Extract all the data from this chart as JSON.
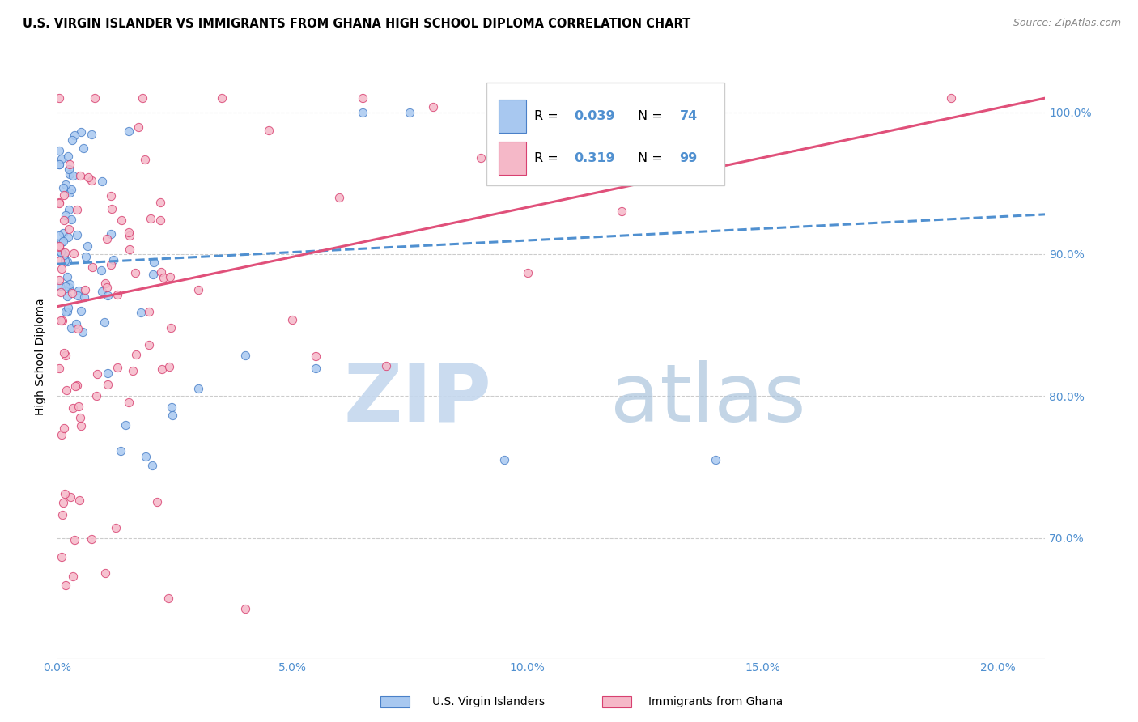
{
  "title": "U.S. VIRGIN ISLANDER VS IMMIGRANTS FROM GHANA HIGH SCHOOL DIPLOMA CORRELATION CHART",
  "source": "Source: ZipAtlas.com",
  "ylabel": "High School Diploma",
  "blue_color": "#a8c8f0",
  "pink_color": "#f5b8c8",
  "trend_blue_color": "#5090d0",
  "trend_pink_color": "#e0507a",
  "blue_edge": "#4a80c8",
  "pink_edge": "#d84070",
  "xlim": [
    0.0,
    0.21
  ],
  "ylim": [
    0.615,
    1.04
  ],
  "xticks": [
    0.0,
    0.05,
    0.1,
    0.15,
    0.2
  ],
  "xticklabels": [
    "0.0%",
    "5.0%",
    "10.0%",
    "15.0%",
    "20.0%"
  ],
  "yticks": [
    0.7,
    0.8,
    0.9,
    1.0
  ],
  "yticklabels": [
    "70.0%",
    "80.0%",
    "90.0%",
    "100.0%"
  ],
  "tick_color": "#5090d0",
  "grid_color": "#cccccc",
  "blue_trend_x": [
    0.0,
    0.21
  ],
  "blue_trend_y": [
    0.893,
    0.928
  ],
  "pink_trend_x": [
    0.0,
    0.21
  ],
  "pink_trend_y": [
    0.863,
    1.01
  ],
  "legend_r1": "0.039",
  "legend_n1": "74",
  "legend_r2": "0.319",
  "legend_n2": "99",
  "watermark_zip": "ZIP",
  "watermark_atlas": "atlas",
  "bottom_label1": "U.S. Virgin Islanders",
  "bottom_label2": "Immigrants from Ghana"
}
